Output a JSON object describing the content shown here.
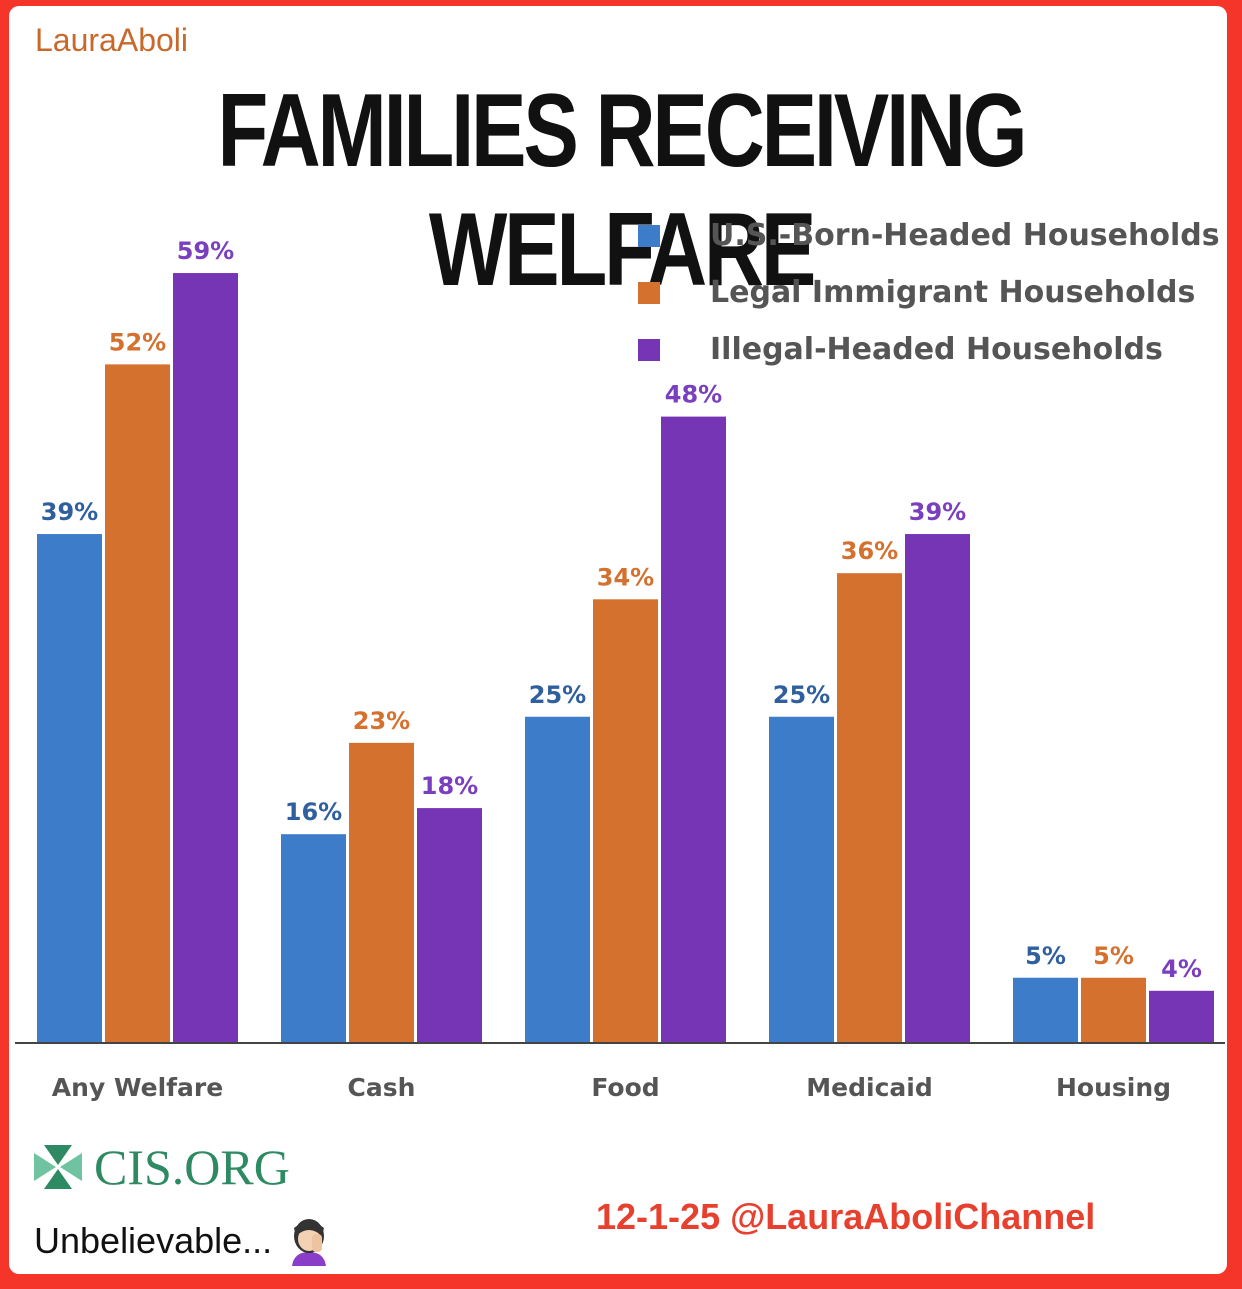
{
  "author": "LauraAboli",
  "caption": "Unbelievable...",
  "caption_emoji": "face-palm-icon",
  "source_logo": "CIS.ORG",
  "credit": "12-1-25 @LauraAboliChannel",
  "colors": {
    "border": "#f5352a",
    "blue": "#3d7cc9",
    "orange": "#d4712e",
    "purple": "#7635b4"
  },
  "chart_data": {
    "type": "bar",
    "title": "FAMILIES RECEIVING WELFARE",
    "categories": [
      "Any Welfare",
      "Cash",
      "Food",
      "Medicaid",
      "Housing"
    ],
    "series": [
      {
        "name": "U.S.-Born-Headed Households",
        "color": "#3d7cc9",
        "label_color": "#2f5f9e",
        "values": [
          39,
          16,
          25,
          25,
          5
        ]
      },
      {
        "name": "Legal Immigrant Households",
        "color": "#d4712e",
        "label_color": "#d4712e",
        "values": [
          52,
          23,
          34,
          36,
          5
        ]
      },
      {
        "name": "Illegal-Headed Households",
        "color": "#7635b4",
        "label_color": "#7a3fbf",
        "values": [
          59,
          18,
          48,
          39,
          4
        ]
      }
    ],
    "value_suffix": "%",
    "ylim": [
      0,
      60
    ],
    "legend": "top-right",
    "grid": false
  }
}
